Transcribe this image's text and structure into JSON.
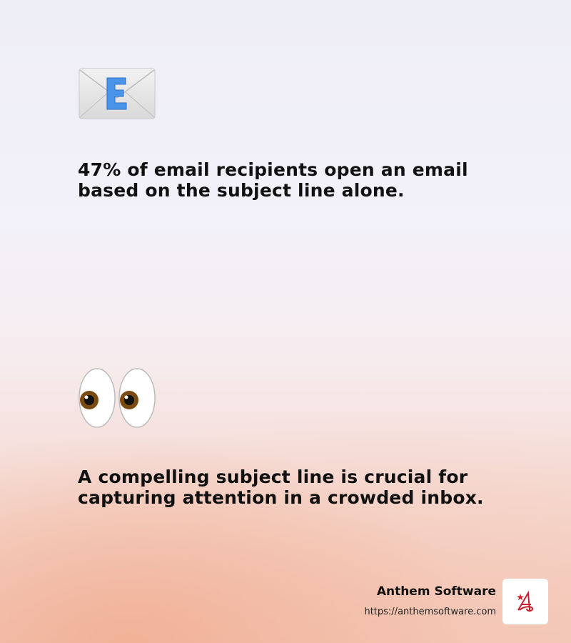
{
  "items": [
    {
      "icon": "envelope-e-icon",
      "text": "47% of email recipients open an email based on the subject line alone."
    },
    {
      "icon": "eyes-icon",
      "text": "A compelling subject line is crucial for capturing attention in a crowded inbox."
    }
  ],
  "footer": {
    "brand": "Anthem Software",
    "url": "https://anthemsoftware.com",
    "logo_icon": "anthem-logo-icon",
    "brand_color": "#c8202f"
  }
}
